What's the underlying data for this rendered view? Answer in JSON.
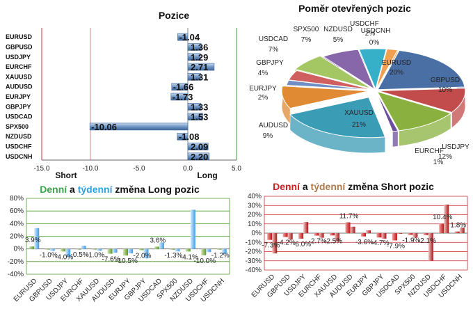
{
  "colors": {
    "long_bar": "#6f96c6",
    "short_bar": "#c0392b",
    "weekly_green": "#7fb043",
    "weekly_long_blue": "#4aa3f0",
    "weekly_short_red": "#b11616",
    "grid_green": "#4c9a2a",
    "grid_red": "#c62828",
    "title_green": "#3aa34a",
    "title_blue": "#2ea3e6",
    "title_red": "#cc2222",
    "title_brown": "#b07a4a"
  },
  "chart_data": [
    {
      "type": "bar",
      "orientation": "horizontal",
      "title": "Pozice",
      "categories": [
        "EURUSD",
        "GBPUSD",
        "USDJPY",
        "EURCHF",
        "XAUUSD",
        "AUDUSD",
        "EURJPY",
        "GBPJPY",
        "USDCAD",
        "SPX500",
        "NZDUSD",
        "USDCHF",
        "USDCNH"
      ],
      "values": [
        -1.04,
        1.36,
        1.29,
        2.71,
        1.31,
        -1.66,
        -1.73,
        1.33,
        1.53,
        -10.06,
        -1.08,
        2.09,
        2.2
      ],
      "value_labels": [
        "-1.04",
        "1.36",
        "1.29",
        "2.71",
        "1.31",
        "-1.66",
        "-1.73",
        "1.33",
        "1.53",
        "-10.06",
        "-1.08",
        "2.09",
        "2.20"
      ],
      "xlim": [
        -15,
        5
      ],
      "tick_labels": [
        "-15.0",
        "-10.0",
        "-5.0",
        "0.0",
        "5.0"
      ],
      "annotations": [
        "Short",
        "Long"
      ]
    },
    {
      "type": "pie",
      "title": "Poměr  otevřených pozic",
      "labels": [
        "EURUSD",
        "GBPUSD",
        "USDJPY",
        "EURCHF",
        "XAUUSD",
        "AUDUSD",
        "EURJPY",
        "GBPJPY",
        "USDCAD",
        "SPX500",
        "NZDUSD",
        "USDCHF",
        "USDCNH"
      ],
      "values": [
        20,
        10,
        12,
        1,
        21,
        9,
        2,
        4,
        7,
        7,
        5,
        2,
        0
      ],
      "value_labels": [
        "20%",
        "10%",
        "12%",
        "1%",
        "21%",
        "9%",
        "2%",
        "4%",
        "7%",
        "7%",
        "5%",
        "2%",
        "0%"
      ],
      "colors": [
        "#4a6fa5",
        "#c24b4b",
        "#8ab13f",
        "#6b4f9e",
        "#3a9cb5",
        "#e08a33",
        "#6f8fc4",
        "#d06060",
        "#a4c764",
        "#8866aa",
        "#36b0c8",
        "#f0a050",
        "#b8c8e0"
      ]
    },
    {
      "type": "bar",
      "title": "Denní a týdenní změna Long pozic",
      "title_parts": [
        "Denní",
        " a ",
        "týdenní",
        " změna Long pozic"
      ],
      "categories": [
        "EURUSD",
        "GBPUSD",
        "USDJPY",
        "EURCHF",
        "XAUUSD",
        "AUDUSD",
        "EURJPY",
        "GBPJPY",
        "USDCAD",
        "SPX500",
        "NZDUSD",
        "USDCHF",
        "USDCNH"
      ],
      "series": [
        {
          "name": "Denní",
          "values": [
            3.9,
            -1.0,
            -4.0,
            -0.5,
            -1.0,
            -7.6,
            -10.5,
            -2.0,
            3.6,
            -1.3,
            -4.1,
            -10.0,
            -1.2
          ]
        },
        {
          "name": "týdenní",
          "values": [
            33,
            -3,
            -13,
            5,
            -3,
            -6,
            -7,
            -15,
            10,
            -4,
            62,
            -5,
            -8
          ]
        }
      ],
      "data_labels": [
        "3.9%",
        "-1.0%",
        "-4.0%",
        "-0.5%",
        "-1.0%",
        "-7.6%",
        "-10.5%",
        "-2.0%",
        "3.6%",
        "-1.3%",
        "-4.1%",
        "-10.0%",
        "-1.2%"
      ],
      "ylim": [
        -40,
        80
      ],
      "tick_labels": [
        "80%",
        "60%",
        "40%",
        "20%",
        "0%",
        "-20%",
        "-40%"
      ]
    },
    {
      "type": "bar",
      "title": "Denní a týdenní změna Short pozic",
      "title_parts": [
        "Denní",
        " a ",
        "týdenní",
        " změna Short pozic"
      ],
      "categories": [
        "EURUSD",
        "GBPUSD",
        "USDJPY",
        "EURCHF",
        "XAUUSD",
        "AUDUSD",
        "EURJPY",
        "GBPJPY",
        "USDCAD",
        "SPX500",
        "NZDUSD",
        "USDCHF",
        "USDCNH"
      ],
      "series": [
        {
          "name": "Denní",
          "values": [
            -7.3,
            -4.2,
            -6.0,
            -2.7,
            -2.5,
            11.7,
            -3.6,
            -4.7,
            -7.9,
            -1.9,
            -2.1,
            10.4,
            1.8
          ]
        },
        {
          "name": "týdenní",
          "values": [
            -22,
            -7,
            12,
            -5,
            -9,
            7,
            3,
            -6,
            0,
            -5,
            -30,
            31,
            6
          ]
        }
      ],
      "data_labels": [
        "-7.3%",
        "-4.2%",
        "-6.0%",
        "-2.7%",
        "-2.5%",
        "11.7%",
        "-3.6%",
        "-4.7%",
        "-7.9%",
        "-1.9%",
        "-2.1%",
        "10.4%",
        "1.8%"
      ],
      "ylim": [
        -40,
        40
      ],
      "tick_labels": [
        "40%",
        "30%",
        "20%",
        "10%",
        "0%",
        "-10%",
        "-20%",
        "-30%",
        "-40%"
      ]
    }
  ]
}
